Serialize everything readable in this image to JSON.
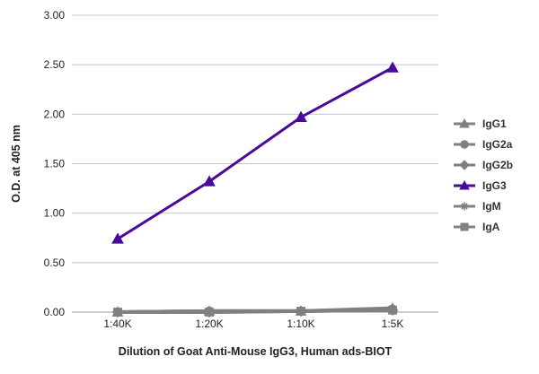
{
  "chart_data": {
    "type": "line",
    "title": "",
    "xlabel": "Dilution of Goat Anti-Mouse IgG3, Human ads-BIOT",
    "ylabel": "O.D. at 405 nm",
    "categories": [
      "1:40K",
      "1:20K",
      "1:10K",
      "1:5K"
    ],
    "ylim": [
      0,
      3
    ],
    "yticks": [
      "0.00",
      "0.50",
      "1.00",
      "1.50",
      "2.00",
      "2.50",
      "3.00"
    ],
    "grid": true,
    "legend": "right",
    "series": [
      {
        "name": "IgG1",
        "values": [
          0.0,
          0.01,
          0.01,
          0.04
        ],
        "color": "#808080",
        "marker": "triangle"
      },
      {
        "name": "IgG2a",
        "values": [
          0.0,
          0.01,
          0.01,
          0.03
        ],
        "color": "#808080",
        "marker": "circle"
      },
      {
        "name": "IgG2b",
        "values": [
          0.0,
          0.0,
          0.01,
          0.02
        ],
        "color": "#808080",
        "marker": "diamond"
      },
      {
        "name": "IgG3",
        "values": [
          0.74,
          1.32,
          1.97,
          2.47
        ],
        "color": "#4b0a9a",
        "marker": "triangle"
      },
      {
        "name": "IgM",
        "values": [
          0.0,
          0.01,
          0.01,
          0.02
        ],
        "color": "#808080",
        "marker": "star"
      },
      {
        "name": "IgA",
        "values": [
          0.0,
          0.0,
          0.01,
          0.02
        ],
        "color": "#808080",
        "marker": "square"
      }
    ]
  }
}
